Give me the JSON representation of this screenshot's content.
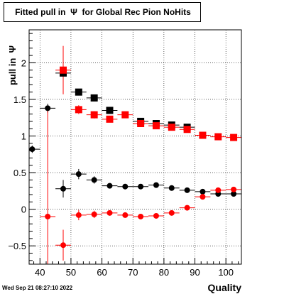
{
  "title": "Fitted pull in  Ψ  for Global Rec Pion NoHits",
  "footer_timestamp": "Wed Sep 21 08:27:10 2022",
  "chart_data": {
    "type": "scatter",
    "title": "Fitted pull in  Ψ  for Global Rec Pion NoHits",
    "xlabel": "Quality",
    "ylabel": "pull in  Ψ",
    "xlim": [
      36.5,
      105
    ],
    "ylim": [
      -0.75,
      2.45
    ],
    "grid": true,
    "x_ticks": [
      40,
      50,
      60,
      70,
      80,
      90,
      100
    ],
    "y_ticks": [
      -0.5,
      0,
      0.5,
      1,
      1.5,
      2
    ],
    "y_tick_labels": [
      "−0.5",
      "0",
      "0.5",
      "1",
      "1.5",
      "2"
    ],
    "x_bin_half_width": 2.5,
    "series": [
      {
        "color": "#000000",
        "marker": "square",
        "x": [
          47.5,
          52.5,
          57.5,
          62.5,
          72.5,
          77.5,
          82.5,
          87.5
        ],
        "y": [
          1.86,
          1.6,
          1.52,
          1.35,
          1.2,
          1.17,
          1.15,
          1.12
        ],
        "yerr": [
          0.04,
          0.04,
          0.04,
          0.03,
          0.03,
          0.03,
          0.03,
          0.03
        ]
      },
      {
        "color": "#ff0000",
        "marker": "square",
        "x": [
          47.5,
          52.5,
          57.5,
          62.5,
          67.5,
          72.5,
          77.5,
          82.5,
          87.5,
          92.5,
          97.5,
          102.5
        ],
        "y": [
          1.9,
          1.36,
          1.29,
          1.23,
          1.29,
          1.17,
          1.14,
          1.12,
          1.09,
          1.01,
          0.99,
          0.98
        ],
        "yerr": [
          0.33,
          0.06,
          0.05,
          0.03,
          0.02,
          0.02,
          0.02,
          0.02,
          0.02,
          0.02,
          0.02,
          0.02
        ]
      },
      {
        "color": "#000000",
        "marker": "circle",
        "x": [
          37.5,
          42.5,
          47.5,
          52.5,
          57.5,
          62.5,
          67.5,
          72.5,
          77.5,
          82.5,
          87.5,
          92.5,
          97.5,
          102.5
        ],
        "y": [
          0.82,
          1.38,
          0.28,
          0.48,
          0.4,
          0.32,
          0.31,
          0.31,
          0.33,
          0.29,
          0.26,
          0.24,
          0.21,
          0.21
        ],
        "yerr": [
          0.05,
          0.06,
          0.12,
          0.07,
          0.05,
          0.03,
          0.02,
          0.02,
          0.02,
          0.02,
          0.02,
          0.02,
          0.02,
          0.02
        ]
      },
      {
        "color": "#ff0000",
        "marker": "circle",
        "x": [
          42.5,
          47.5,
          52.5,
          57.5,
          62.5,
          67.5,
          72.5,
          77.5,
          82.5,
          87.5,
          92.5,
          97.5,
          102.5
        ],
        "y": [
          -0.1,
          -0.49,
          -0.08,
          -0.07,
          -0.05,
          -0.08,
          -0.1,
          -0.09,
          -0.05,
          0.02,
          0.17,
          0.26,
          0.27
        ],
        "yerr": [
          1.45,
          0.21,
          0.07,
          0.05,
          0.03,
          0.03,
          0.03,
          0.02,
          0.02,
          0.02,
          0.02,
          0.02,
          0.02
        ]
      }
    ]
  }
}
